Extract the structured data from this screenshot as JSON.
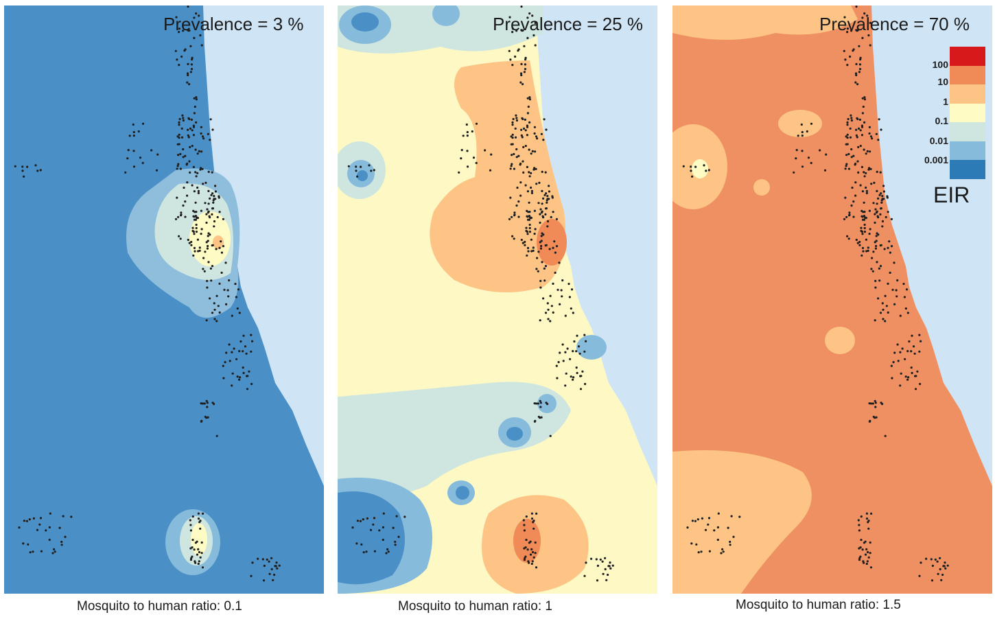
{
  "panels": [
    {
      "title": "Prevalence = 3 %",
      "caption": "Mosquito to human ratio: 0.1",
      "base_color": "#4a8fc6",
      "sea_color": "#cfe5f6"
    },
    {
      "title": "Prevalence = 25 %",
      "caption": "Mosquito to human ratio: 1",
      "base_color": "#fdf8c4",
      "sea_color": "#cfe5f6"
    },
    {
      "title": "Prevalence = 70 %",
      "caption": "Mosquito to human ratio: 1.5",
      "base_color": "#ef9062",
      "sea_color": "#cfe5f6"
    }
  ],
  "legend": {
    "title": "EIR",
    "ticks": [
      "100",
      "10",
      "1",
      "0.1",
      "0.01",
      "0.001"
    ],
    "colors": [
      "#d7191c",
      "#f08a57",
      "#fdc485",
      "#fefbc4",
      "#cfe6e0",
      "#86bbdc",
      "#2c7bb6"
    ]
  }
}
